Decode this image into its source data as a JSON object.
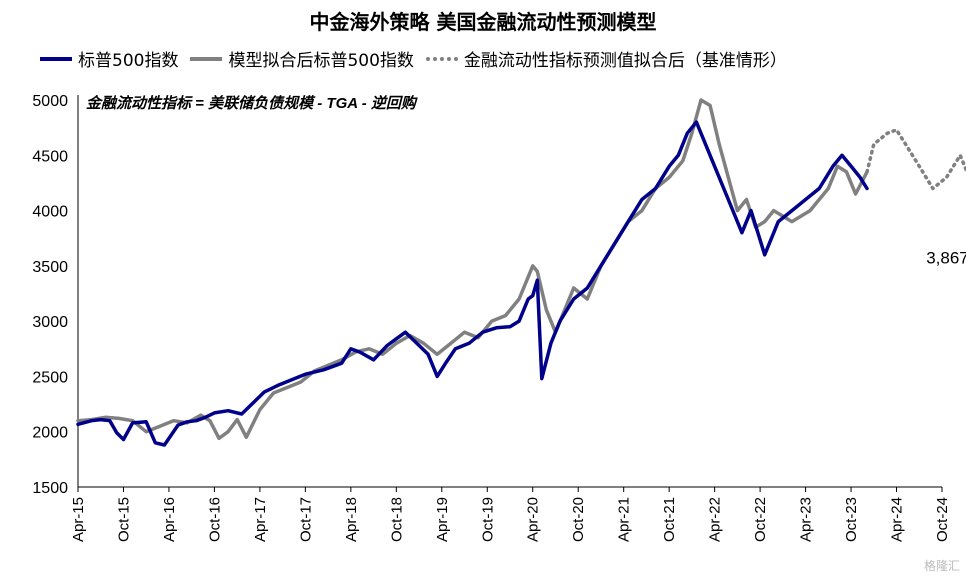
{
  "chart_data": {
    "type": "line",
    "title": "中金海外策略  美国金融流动性预测模型",
    "annotation": "金融流动性指标 = 美联储负债规模 - TGA - 逆回购",
    "end_label": "3,867",
    "watermark": "格隆汇",
    "ylim": [
      1500,
      5000
    ],
    "yticks": [
      "5000",
      "4500",
      "4000",
      "3500",
      "3000",
      "2500",
      "2000",
      "1500"
    ],
    "xticks": [
      "Apr-15",
      "Oct-15",
      "Apr-16",
      "Oct-16",
      "Apr-17",
      "Oct-17",
      "Apr-18",
      "Oct-18",
      "Apr-19",
      "Oct-19",
      "Apr-20",
      "Oct-20",
      "Apr-21",
      "Oct-21",
      "Apr-22",
      "Oct-22",
      "Apr-23",
      "Oct-23",
      "Apr-24",
      "Oct-24"
    ],
    "series": [
      {
        "name": "标普500指数",
        "color": "#00008B",
        "style": "solid",
        "x": [
          0,
          0.3,
          0.5,
          0.7,
          0.85,
          1.0,
          1.2,
          1.5,
          1.7,
          1.9,
          2.2,
          2.4,
          2.6,
          2.8,
          3.0,
          3.3,
          3.6,
          3.9,
          4.1,
          4.4,
          4.7,
          5.0,
          5.4,
          5.8,
          6.0,
          6.2,
          6.5,
          6.8,
          7.0,
          7.2,
          7.5,
          7.7,
          7.9,
          8.1,
          8.3,
          8.6,
          8.9,
          9.2,
          9.5,
          9.7,
          9.9,
          10.0,
          10.1,
          10.2,
          10.4,
          10.6,
          10.9,
          11.2,
          11.5,
          11.8,
          12.1,
          12.4,
          12.7,
          13.0,
          13.2,
          13.4,
          13.6,
          13.8,
          14.0,
          14.3,
          14.6,
          14.8,
          15.1,
          15.4,
          15.7,
          16.0,
          16.3,
          16.6,
          16.8,
          17.0,
          17.2,
          17.35
        ],
        "y": [
          2067,
          2100,
          2110,
          2100,
          1990,
          1930,
          2080,
          2090,
          1900,
          1880,
          2060,
          2090,
          2100,
          2130,
          2170,
          2190,
          2160,
          2280,
          2360,
          2420,
          2470,
          2520,
          2560,
          2620,
          2750,
          2720,
          2650,
          2780,
          2840,
          2900,
          2780,
          2700,
          2500,
          2630,
          2750,
          2800,
          2900,
          2940,
          2950,
          3000,
          3200,
          3230,
          3370,
          2480,
          2800,
          3000,
          3200,
          3300,
          3500,
          3700,
          3900,
          4100,
          4200,
          4400,
          4500,
          4700,
          4800,
          4600,
          4400,
          4100,
          3800,
          4000,
          3600,
          3900,
          4000,
          4100,
          4200,
          4400,
          4500,
          4400,
          4300,
          4200
        ]
      },
      {
        "name": "模型拟合后标普500指数",
        "color": "#808080",
        "style": "solid",
        "x": [
          0,
          0.3,
          0.6,
          0.9,
          1.2,
          1.5,
          1.8,
          2.1,
          2.4,
          2.7,
          2.9,
          3.1,
          3.3,
          3.5,
          3.7,
          4.0,
          4.3,
          4.6,
          4.9,
          5.2,
          5.5,
          5.8,
          6.1,
          6.4,
          6.7,
          7.0,
          7.3,
          7.6,
          7.9,
          8.2,
          8.5,
          8.8,
          9.1,
          9.4,
          9.7,
          9.9,
          10.0,
          10.1,
          10.3,
          10.5,
          10.7,
          10.9,
          11.2,
          11.5,
          11.8,
          12.1,
          12.4,
          12.7,
          13.0,
          13.3,
          13.5,
          13.7,
          13.9,
          14.1,
          14.3,
          14.5,
          14.7,
          14.9,
          15.1,
          15.3,
          15.5,
          15.7,
          15.9,
          16.1,
          16.3,
          16.5,
          16.7,
          16.9,
          17.1,
          17.35
        ],
        "y": [
          2100,
          2110,
          2130,
          2120,
          2100,
          2000,
          2050,
          2100,
          2080,
          2150,
          2100,
          1940,
          2000,
          2110,
          1950,
          2200,
          2350,
          2400,
          2450,
          2550,
          2600,
          2650,
          2720,
          2750,
          2700,
          2800,
          2870,
          2800,
          2700,
          2800,
          2900,
          2850,
          3000,
          3050,
          3200,
          3400,
          3500,
          3450,
          3100,
          2900,
          3100,
          3300,
          3200,
          3500,
          3700,
          3900,
          4000,
          4200,
          4300,
          4450,
          4700,
          5000,
          4950,
          4600,
          4300,
          4000,
          4100,
          3850,
          3900,
          4000,
          3950,
          3900,
          3950,
          4000,
          4100,
          4200,
          4400,
          4350,
          4150,
          4350
        ]
      },
      {
        "name": "金融流动性指标预测值拟合后（基准情形）",
        "color": "#808080",
        "style": "dotted",
        "x": [
          17.35,
          17.5,
          17.8,
          18.0,
          18.2,
          18.5,
          18.8,
          19.1,
          19.4,
          19.7,
          20.0
        ],
        "y": [
          4350,
          4600,
          4700,
          4730,
          4600,
          4400,
          4200,
          4300,
          4500,
          4200,
          3867
        ]
      }
    ]
  }
}
